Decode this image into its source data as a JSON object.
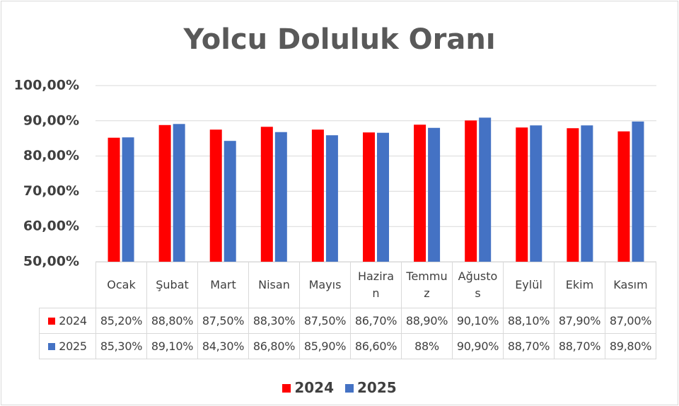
{
  "chart_data": {
    "type": "bar",
    "title": "Yolcu Doluluk Oranı",
    "categories": [
      "Ocak",
      "Şubat",
      "Mart",
      "Nisan",
      "Mayıs",
      "Haziran",
      "Temmuz",
      "Ağustos",
      "Eylül",
      "Ekim",
      "Kasım"
    ],
    "series": [
      {
        "name": "2024",
        "color": "#ff0000",
        "values": [
          85.2,
          88.8,
          87.5,
          88.3,
          87.5,
          86.7,
          88.9,
          90.1,
          88.1,
          87.9,
          87.0
        ],
        "value_labels": [
          "85,20%",
          "88,80%",
          "87,50%",
          "88,30%",
          "87,50%",
          "86,70%",
          "88,90%",
          "90,10%",
          "88,10%",
          "87,90%",
          "87,00%"
        ]
      },
      {
        "name": "2025",
        "color": "#4472c4",
        "values": [
          85.3,
          89.1,
          84.3,
          86.8,
          85.9,
          86.6,
          88,
          90.9,
          88.7,
          88.7,
          89.8
        ],
        "value_labels": [
          "85,30%",
          "89,10%",
          "84,30%",
          "86,80%",
          "85,90%",
          "86,60%",
          "88%",
          "90,90%",
          "88,70%",
          "88,70%",
          "89,80%"
        ]
      }
    ],
    "ylim": [
      50,
      100
    ],
    "yticks": [
      {
        "value": 50,
        "label": "50,00%"
      },
      {
        "value": 60,
        "label": "60,00%"
      },
      {
        "value": 70,
        "label": "70,00%"
      },
      {
        "value": 80,
        "label": "80,00%"
      },
      {
        "value": 90,
        "label": "90,00%"
      },
      {
        "value": 100,
        "label": "100,00%"
      }
    ],
    "grid": true,
    "legend": "bottom"
  }
}
